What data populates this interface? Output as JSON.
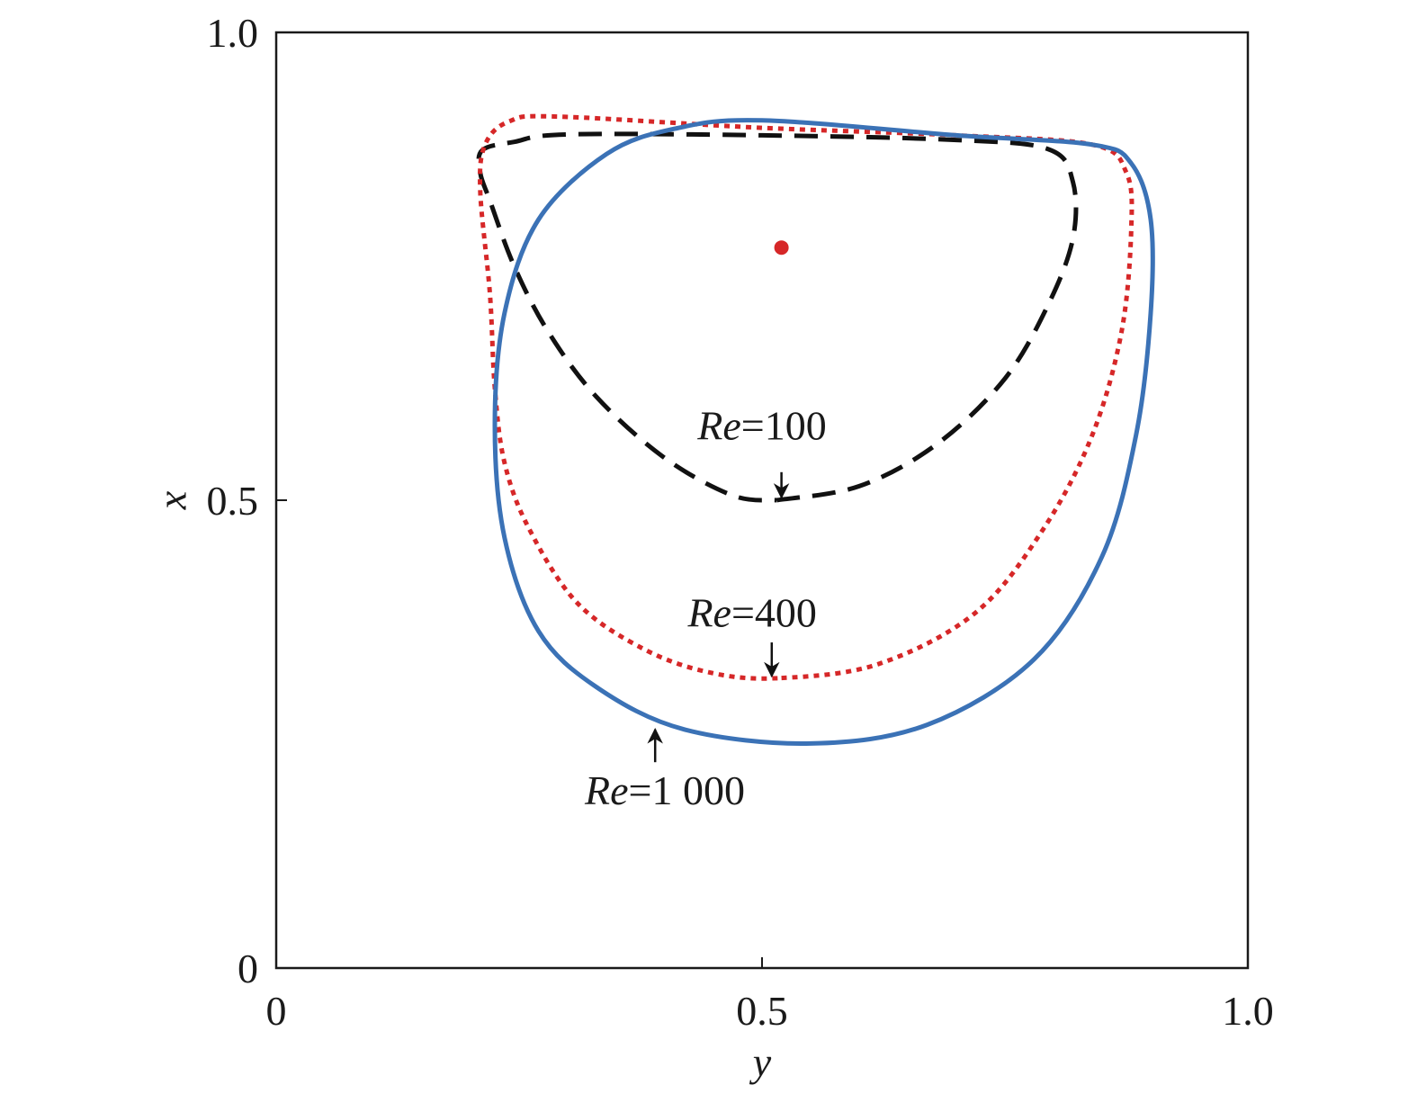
{
  "chart_data": {
    "type": "line",
    "title": "",
    "xlabel": "y",
    "ylabel": "x",
    "xlim": [
      0,
      1
    ],
    "ylim": [
      0,
      1
    ],
    "x_ticks": [
      {
        "value": 0,
        "label": "0"
      },
      {
        "value": 0.5,
        "label": "0.5"
      },
      {
        "value": 1,
        "label": "1.0"
      }
    ],
    "y_ticks": [
      {
        "value": 0,
        "label": "0"
      },
      {
        "value": 0.5,
        "label": "0.5"
      },
      {
        "value": 1,
        "label": "1.0"
      }
    ],
    "grid": false,
    "legend": "none",
    "series": [
      {
        "style": "dashed",
        "color": "#111111",
        "closed": false,
        "points": [
          [
            0.515,
            0.5
          ],
          [
            0.6,
            0.515
          ],
          [
            0.68,
            0.56
          ],
          [
            0.75,
            0.63
          ],
          [
            0.795,
            0.71
          ],
          [
            0.82,
            0.78
          ],
          [
            0.82,
            0.84
          ],
          [
            0.795,
            0.875
          ],
          [
            0.7,
            0.885
          ],
          [
            0.5,
            0.89
          ],
          [
            0.3,
            0.891
          ],
          [
            0.245,
            0.883
          ],
          [
            0.212,
            0.874
          ],
          [
            0.21,
            0.85
          ],
          [
            0.22,
            0.82
          ],
          [
            0.245,
            0.75
          ],
          [
            0.28,
            0.68
          ],
          [
            0.33,
            0.61
          ],
          [
            0.4,
            0.545
          ],
          [
            0.47,
            0.505
          ],
          [
            0.515,
            0.5
          ]
        ]
      },
      {
        "style": "dotted",
        "color": "#d62728",
        "closed": true,
        "points": [
          [
            0.52,
            0.31
          ],
          [
            0.62,
            0.325
          ],
          [
            0.72,
            0.38
          ],
          [
            0.79,
            0.47
          ],
          [
            0.84,
            0.57
          ],
          [
            0.87,
            0.68
          ],
          [
            0.88,
            0.79
          ],
          [
            0.875,
            0.85
          ],
          [
            0.84,
            0.88
          ],
          [
            0.7,
            0.89
          ],
          [
            0.5,
            0.898
          ],
          [
            0.29,
            0.91
          ],
          [
            0.24,
            0.905
          ],
          [
            0.215,
            0.88
          ],
          [
            0.21,
            0.83
          ],
          [
            0.22,
            0.72
          ],
          [
            0.225,
            0.62
          ],
          [
            0.235,
            0.54
          ],
          [
            0.26,
            0.47
          ],
          [
            0.31,
            0.39
          ],
          [
            0.38,
            0.34
          ],
          [
            0.45,
            0.315
          ]
        ]
      },
      {
        "style": "solid",
        "color": "#3b72b6",
        "closed": true,
        "points": [
          [
            0.55,
            0.24
          ],
          [
            0.67,
            0.26
          ],
          [
            0.78,
            0.33
          ],
          [
            0.85,
            0.44
          ],
          [
            0.885,
            0.57
          ],
          [
            0.9,
            0.7
          ],
          [
            0.9,
            0.8
          ],
          [
            0.88,
            0.86
          ],
          [
            0.84,
            0.88
          ],
          [
            0.7,
            0.89
          ],
          [
            0.5,
            0.906
          ],
          [
            0.41,
            0.897
          ],
          [
            0.34,
            0.87
          ],
          [
            0.27,
            0.8
          ],
          [
            0.235,
            0.7
          ],
          [
            0.225,
            0.58
          ],
          [
            0.235,
            0.46
          ],
          [
            0.27,
            0.36
          ],
          [
            0.33,
            0.3
          ],
          [
            0.42,
            0.255
          ]
        ]
      }
    ],
    "marker": {
      "x": 0.52,
      "y": 0.77,
      "color": "#d62728"
    },
    "annotations": [
      {
        "italic": "Re",
        "text": "=100",
        "label_x": 0.5,
        "label_y": 0.565,
        "arrow_from": [
          0.52,
          0.53
        ],
        "arrow_to": [
          0.52,
          0.503
        ]
      },
      {
        "italic": "Re",
        "text": "=400",
        "label_x": 0.49,
        "label_y": 0.365,
        "arrow_from": [
          0.51,
          0.348
        ],
        "arrow_to": [
          0.51,
          0.312
        ]
      },
      {
        "italic": "Re",
        "text": "=1 000",
        "label_x": 0.4,
        "label_y": 0.175,
        "arrow_from": [
          0.39,
          0.22
        ],
        "arrow_to": [
          0.39,
          0.255
        ]
      }
    ]
  }
}
